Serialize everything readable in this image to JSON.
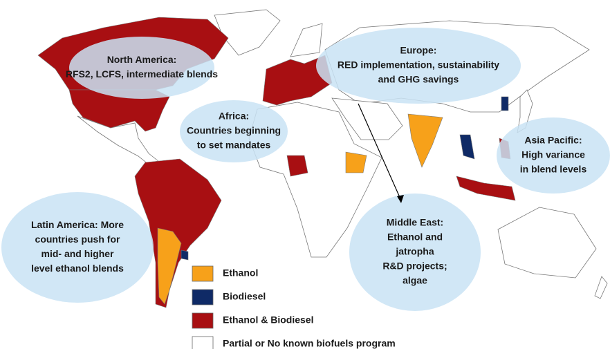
{
  "regions": [
    {
      "lines": [
        "North America:",
        "RFS2, LCFS, intermediate blends"
      ]
    },
    {
      "lines": [
        "Europe:",
        "RED implementation, sustainability",
        "and GHG savings"
      ]
    },
    {
      "lines": [
        "Africa:",
        "Countries beginning",
        "to set mandates"
      ]
    },
    {
      "lines": [
        "Asia Pacific:",
        "High variance",
        "in blend levels"
      ]
    },
    {
      "lines": [
        "Latin America: More",
        "countries push for",
        "mid- and higher",
        "level ethanol blends"
      ]
    },
    {
      "lines": [
        "Middle East:",
        "Ethanol and",
        "jatropha",
        "R&D projects;",
        "algae"
      ]
    }
  ],
  "bubble_color": "#c9e3f5",
  "legend": [
    {
      "label": "Ethanol",
      "color": "#f7a11a"
    },
    {
      "label": "Biodiesel",
      "color": "#0f2a66"
    },
    {
      "label": "Ethanol & Biodiesel",
      "color": "#a80f12"
    },
    {
      "label": "Partial or No known biofuels program",
      "color": "#ffffff"
    }
  ]
}
